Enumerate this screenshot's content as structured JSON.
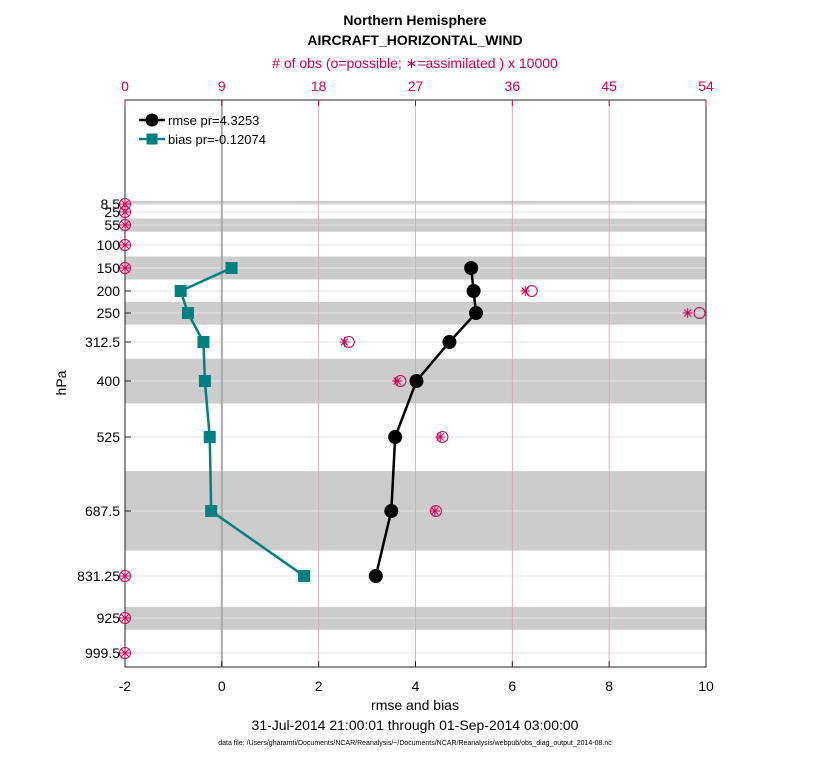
{
  "chart_data": {
    "type": "line",
    "title": "Northern Hemisphere",
    "subtitle": "AIRCRAFT_HORIZONTAL_WIND",
    "top_axis_label": "# of obs (o=possible; ∗=assimilated ) x 10000",
    "xlabel": "rmse and bias",
    "ylabel": "hPa",
    "date_range": "31-Jul-2014 21:00:01 through 01-Sep-2014 03:00:00",
    "footnote": "data file: /Users/gharamti/Documents/NCAR/Reanalysis/~/Documents/NCAR/Reanalysis/webpub/obs_diag_output_2014-08.nc",
    "xlim": [
      -2,
      10
    ],
    "x_ticks": [
      -2,
      0,
      2,
      4,
      6,
      8,
      10
    ],
    "x_tick_labels": [
      "-2",
      "0",
      "2",
      "4",
      "6",
      "8",
      "10"
    ],
    "top_xlim": [
      0,
      54
    ],
    "top_ticks": [
      0,
      9,
      18,
      27,
      36,
      45,
      54
    ],
    "top_tick_labels": [
      "0",
      "9",
      "18",
      "27",
      "36",
      "45",
      "54"
    ],
    "y_levels": [
      8.5,
      25,
      55,
      100,
      150,
      200,
      250,
      312.5,
      400,
      525,
      687.5,
      831.25,
      925,
      999.5
    ],
    "y_tick_labels": [
      "8.5",
      "25",
      "55",
      "100",
      "150",
      "200",
      "250",
      "312.5",
      "400",
      "525",
      "687.5",
      "831.25",
      "925",
      "999.5"
    ],
    "shaded_layers": [
      [
        4,
        10
      ],
      [
        40,
        70
      ],
      [
        125,
        175
      ],
      [
        225,
        275
      ],
      [
        350,
        450
      ],
      [
        600,
        775
      ],
      [
        900,
        950
      ]
    ],
    "series": [
      {
        "name": "rmse",
        "legend": "rmse pr=4.3253",
        "color": "#000000",
        "marker": "circle",
        "levels": [
          150,
          200,
          250,
          312.5,
          400,
          525,
          687.5,
          831.25
        ],
        "values": [
          5.15,
          5.2,
          5.25,
          4.7,
          4.02,
          3.58,
          3.5,
          3.18
        ]
      },
      {
        "name": "bias",
        "legend": "bias pr=-0.12074",
        "color": "#008080",
        "marker": "square",
        "levels": [
          150,
          200,
          250,
          312.5,
          400,
          525,
          687.5,
          831.25
        ],
        "values": [
          0.2,
          -0.85,
          -0.7,
          -0.38,
          -0.35,
          -0.25,
          -0.22,
          1.7
        ]
      }
    ],
    "obs_counts": {
      "color": "#cc0055",
      "levels": [
        8.5,
        25,
        55,
        100,
        150,
        200,
        250,
        312.5,
        400,
        525,
        687.5,
        831.25,
        925,
        999.5
      ],
      "possible": [
        0,
        0,
        0,
        0,
        0,
        37.8,
        53.4,
        20.8,
        25.6,
        29.5,
        28.9,
        0,
        0,
        0
      ],
      "assimilated": [
        0,
        0,
        0,
        0,
        0,
        37.2,
        52.3,
        20.4,
        25.3,
        29.3,
        28.8,
        0,
        0,
        0
      ]
    }
  }
}
